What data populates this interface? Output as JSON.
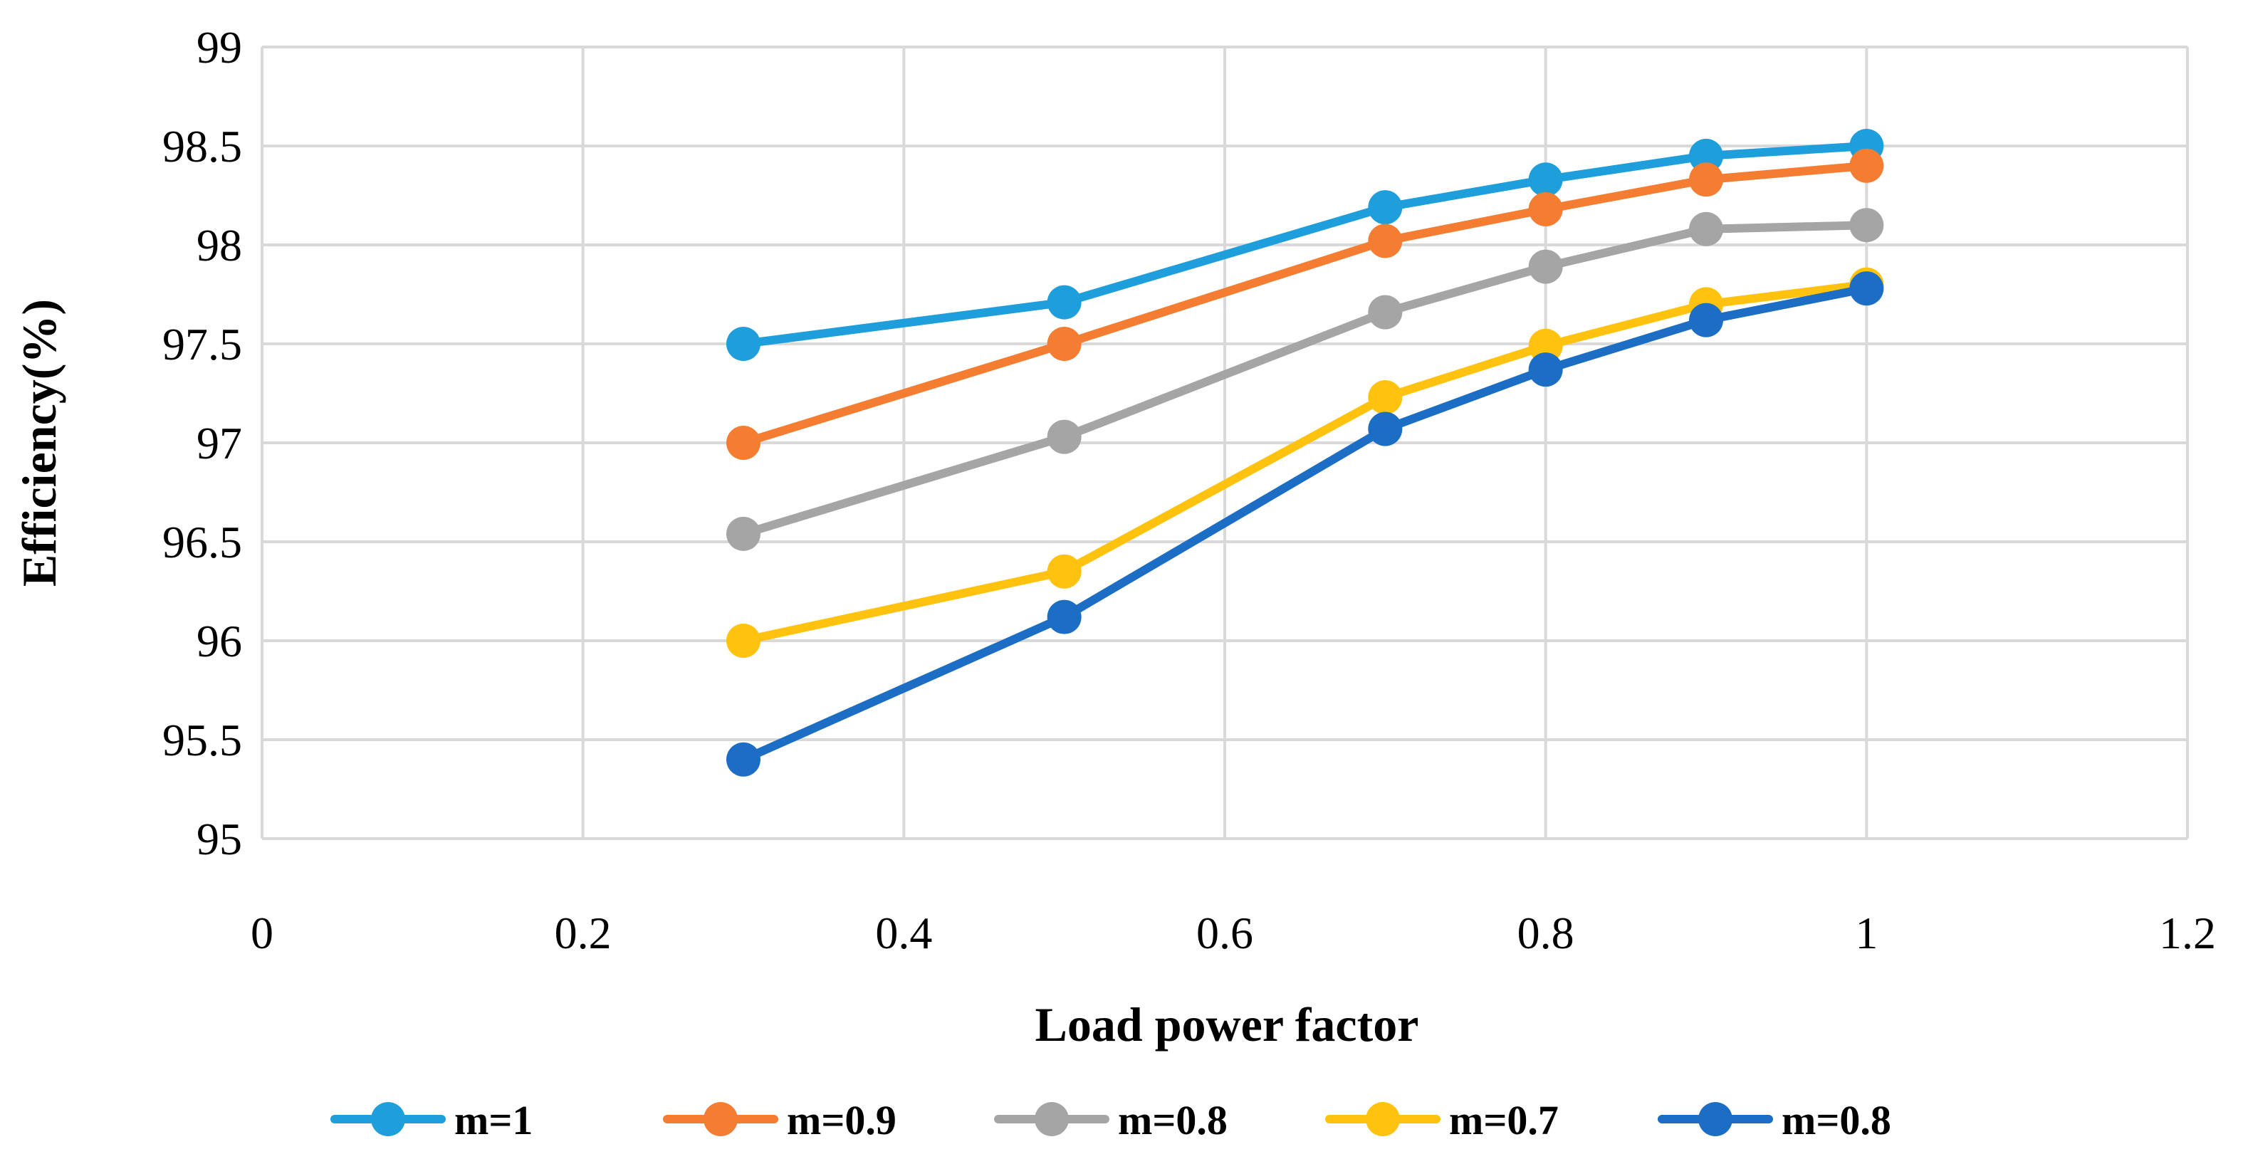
{
  "chart_data": {
    "type": "line",
    "title": "",
    "xlabel": "Load power factor",
    "ylabel": "Efficiency(%)",
    "xlim": [
      0,
      1.2
    ],
    "ylim": [
      95,
      99
    ],
    "xticks": [
      0,
      0.2,
      0.4,
      0.6,
      0.8,
      1,
      1.2
    ],
    "yticks": [
      95,
      95.5,
      96,
      96.5,
      97,
      97.5,
      98,
      98.5,
      99
    ],
    "x_tick_labels": [
      "0",
      "0.2",
      "0.4",
      "0.6",
      "0.8",
      "1",
      "1.2"
    ],
    "y_tick_labels": [
      "95",
      "95.5",
      "96",
      "96.5",
      "97",
      "97.5",
      "98",
      "98.5",
      "99"
    ],
    "grid": true,
    "legend_position": "bottom",
    "x": [
      0.3,
      0.5,
      0.7,
      0.8,
      0.9,
      1
    ],
    "series": [
      {
        "name": "m=1",
        "color": "#1E9FDC",
        "values": [
          97.5,
          97.71,
          98.19,
          98.33,
          98.45,
          98.5
        ]
      },
      {
        "name": "m=0.9",
        "color": "#F47D31",
        "values": [
          97.0,
          97.5,
          98.02,
          98.18,
          98.33,
          98.4
        ]
      },
      {
        "name": "m=0.8",
        "color": "#A5A5A5",
        "values": [
          96.54,
          97.03,
          97.66,
          97.89,
          98.08,
          98.1
        ]
      },
      {
        "name": "m=0.7",
        "color": "#FFC20E",
        "values": [
          96.0,
          96.35,
          97.23,
          97.49,
          97.7,
          97.8
        ]
      },
      {
        "name": "m=0.8",
        "color": "#1C6DC4",
        "values": [
          95.4,
          96.12,
          97.07,
          97.37,
          97.62,
          97.78
        ]
      }
    ]
  }
}
